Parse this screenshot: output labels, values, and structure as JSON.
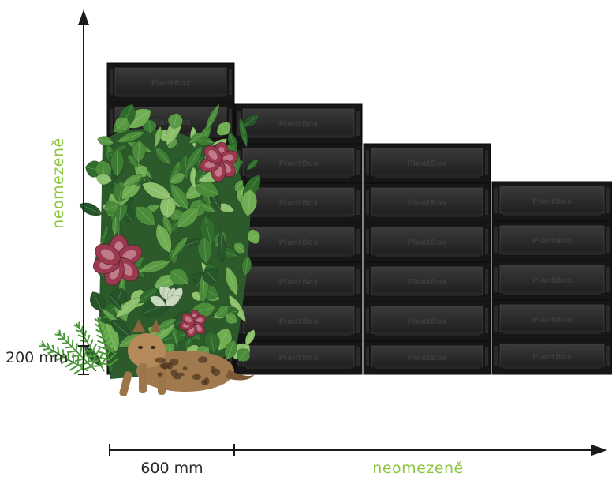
{
  "brand_text": "PlantBox",
  "labels": {
    "vertical_unbounded": "neomezeně",
    "horizontal_unbounded": "neomezeně",
    "module_height": "200 mm",
    "module_width": "600 mm"
  },
  "colors": {
    "accent": "#8dc63f",
    "ink": "#1a1a1a",
    "box_dark": "#161616",
    "box_face": "#2e2e2e",
    "leaf_dark": "#2f6b2a",
    "leaf_mid": "#4a8c3a",
    "leaf_light": "#8cc06b",
    "begonia": "#9b3a4e",
    "cat": "#a07a4e"
  },
  "icons": {
    "vertical_axis_arrow": "arrow-up-icon",
    "horizontal_axis_arrow": "arrow-right-icon"
  }
}
